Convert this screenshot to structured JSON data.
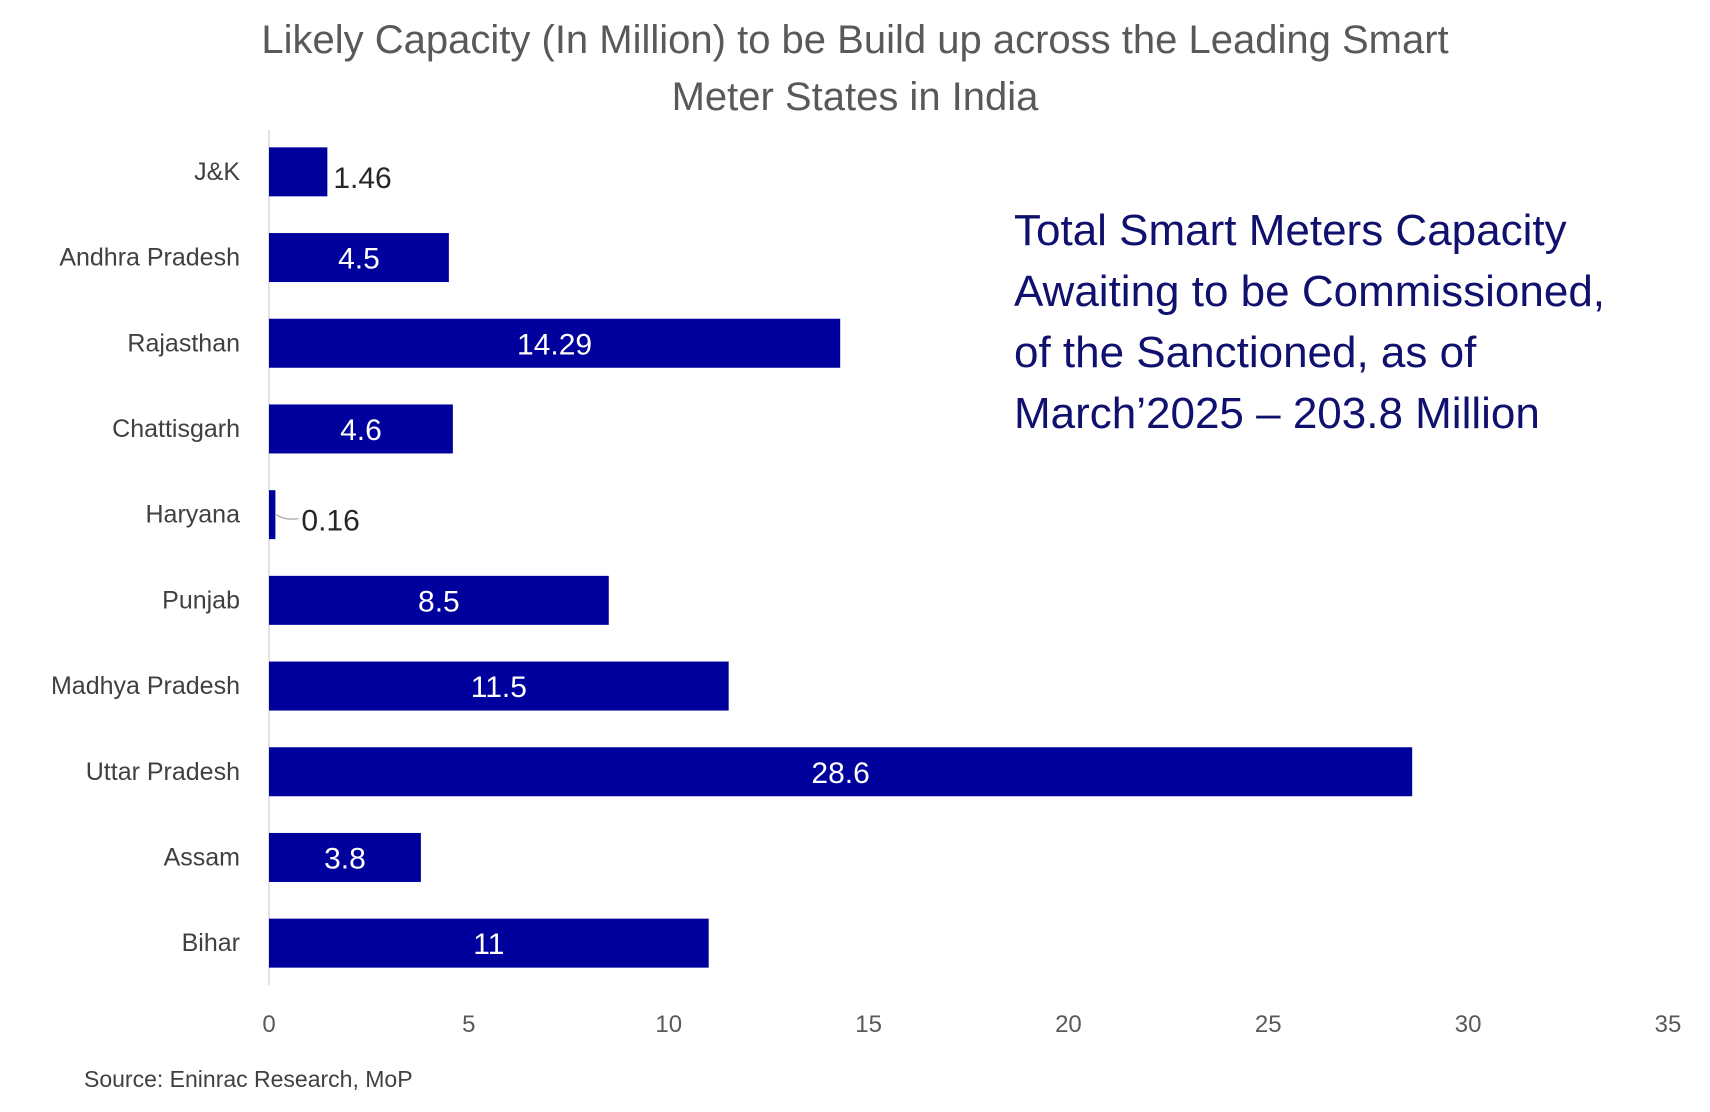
{
  "chart_data": {
    "type": "bar",
    "orientation": "horizontal",
    "title_lines": [
      "Likely Capacity (In Million) to be Build up across the Leading Smart",
      "Meter States in India"
    ],
    "categories": [
      "J&K",
      "Andhra Pradesh",
      "Rajasthan",
      "Chattisgarh",
      "Haryana",
      "Punjab",
      "Madhya Pradesh",
      "Uttar Pradesh",
      "Assam",
      "Bihar"
    ],
    "values": [
      1.46,
      4.5,
      14.29,
      4.6,
      0.16,
      8.5,
      11.5,
      28.6,
      3.8,
      11
    ],
    "value_labels": [
      "1.46",
      "4.5",
      "14.29",
      "4.6",
      "0.16",
      "8.5",
      "11.5",
      "28.6",
      "3.8",
      "11"
    ],
    "xlim": [
      0,
      35
    ],
    "xticks": [
      "0",
      "5",
      "10",
      "15",
      "20",
      "25",
      "30",
      "35"
    ],
    "grid": false,
    "bar_color": "#00009c",
    "xlabel": "",
    "ylabel": "",
    "annotation_lines": [
      "Total Smart Meters Capacity",
      "Awaiting to be Commissioned,",
      "of the Sanctioned, as of",
      "March’2025  – 203.8 Million"
    ],
    "source": "Source: Eninrac Research, MoP"
  }
}
